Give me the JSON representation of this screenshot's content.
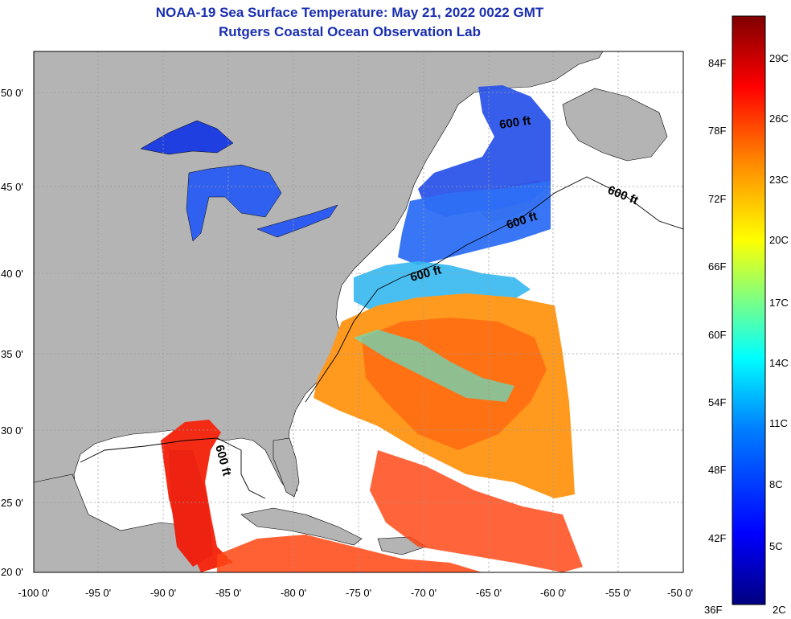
{
  "title": "NOAA-19 Sea Surface Temperature:  May 21, 2022 0022 GMT",
  "subtitle": "Rutgers Coastal Ocean Observation Lab",
  "map": {
    "lon_range": [
      -100,
      -50
    ],
    "lat_range": [
      20,
      52.5
    ],
    "lon_ticks": [
      "-100 0'",
      "-95 0'",
      "-90 0'",
      "-85 0'",
      "-80 0'",
      "-75 0'",
      "-70 0'",
      "-65 0'",
      "-60 0'",
      "-55 0'",
      "-50 0'"
    ],
    "lat_ticks": [
      "50 0'",
      "45 0'",
      "40 0'",
      "35 0'",
      "30 0'",
      "25 0'",
      "20 0'"
    ],
    "isobath_label": "600 ft",
    "colors": {
      "land": "#b4b4b4",
      "no_data": "#ffffff",
      "grid": "#9a9a9a"
    }
  },
  "colorbar": {
    "f_labels": [
      "84F",
      "78F",
      "72F",
      "66F",
      "60F",
      "54F",
      "48F",
      "42F",
      "36F"
    ],
    "c_labels": [
      "29C",
      "26C",
      "23C",
      "20C",
      "17C",
      "14C",
      "11C",
      "8C",
      "5C",
      "2C"
    ],
    "stops": [
      "#00007f",
      "#0000ff",
      "#0080ff",
      "#00ffff",
      "#80ff80",
      "#ffff00",
      "#ff8000",
      "#ff0000",
      "#7f0000"
    ]
  }
}
